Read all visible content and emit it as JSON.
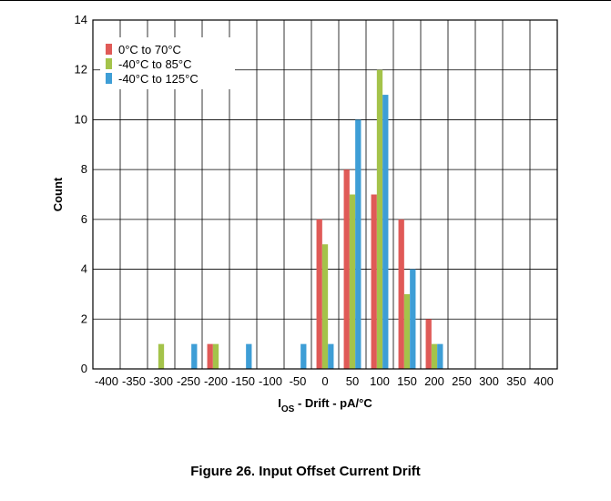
{
  "chart_data": {
    "type": "bar",
    "xlabel_main": "I",
    "xlabel_sub": "OS",
    "xlabel_rest": " - Drift - pA/°C",
    "ylabel": "Count",
    "ylim": [
      0,
      14
    ],
    "yticks": [
      "0",
      "2",
      "4",
      "6",
      "8",
      "10",
      "12",
      "14"
    ],
    "categories": [
      "-400",
      "-350",
      "-300",
      "-250",
      "-200",
      "-150",
      "-100",
      "-50",
      "0",
      "50",
      "100",
      "150",
      "200",
      "250",
      "300",
      "350",
      "400"
    ],
    "grid": true,
    "legend_position": "top-left",
    "series": [
      {
        "name": "0°C to 70°C",
        "color": "#e05a57",
        "values": [
          0,
          0,
          0,
          0,
          1,
          0,
          0,
          0,
          6,
          8,
          7,
          6,
          2,
          0,
          0,
          0,
          0
        ]
      },
      {
        "name": "-40°C to 85°C",
        "color": "#a4c34a",
        "values": [
          0,
          0,
          1,
          0,
          1,
          0,
          0,
          0,
          5,
          7,
          12,
          3,
          1,
          0,
          0,
          0,
          0
        ]
      },
      {
        "name": "-40°C to 125°C",
        "color": "#3e9ed6",
        "values": [
          0,
          0,
          0,
          1,
          0,
          1,
          0,
          1,
          1,
          10,
          11,
          4,
          1,
          0,
          0,
          0,
          0
        ]
      }
    ]
  },
  "caption": "Figure 26. Input Offset Current Drift"
}
